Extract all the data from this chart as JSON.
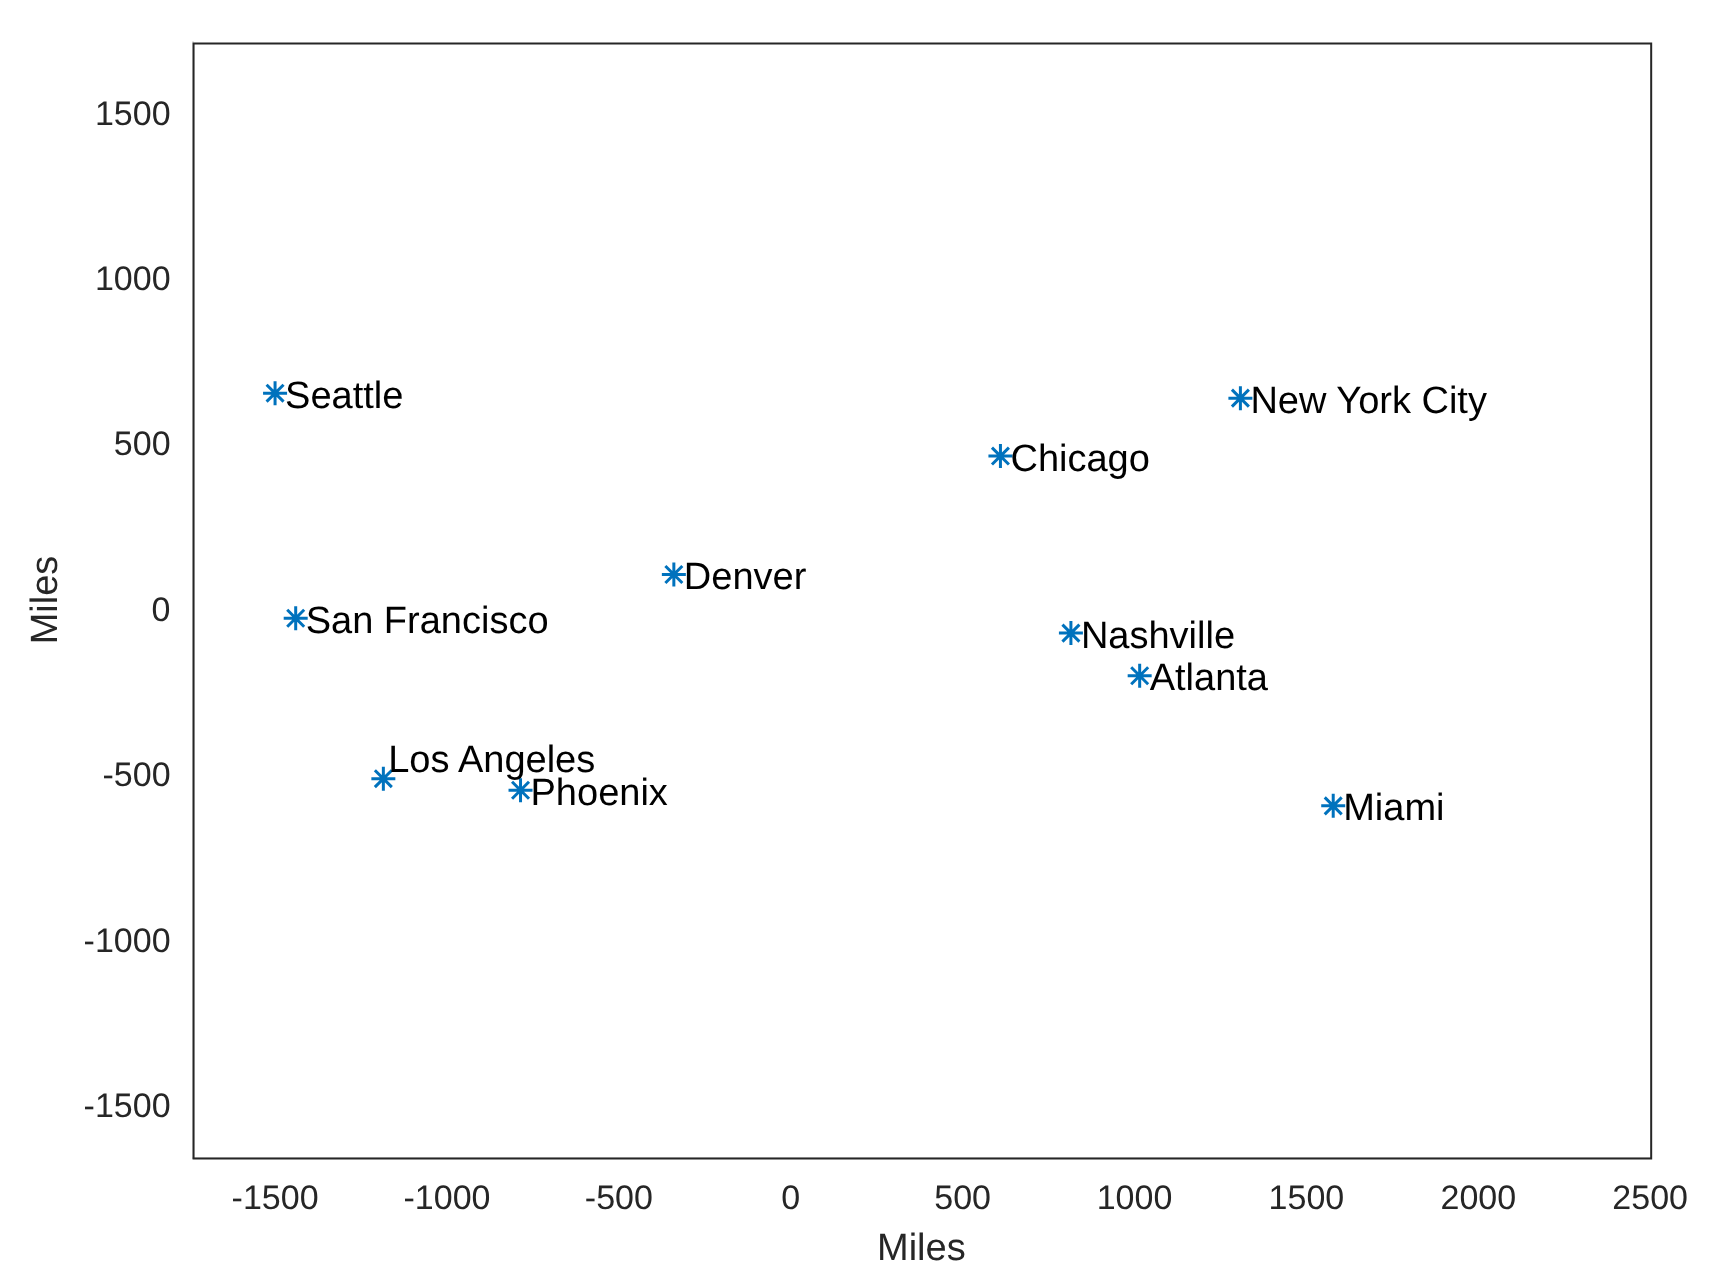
{
  "chart_data": {
    "type": "scatter",
    "xlabel": "Miles",
    "ylabel": "Miles",
    "xlim": [
      -1740,
      2500
    ],
    "xticks": [
      -1500,
      -1000,
      -500,
      0,
      500,
      1000,
      1500,
      2000,
      2500
    ],
    "ylim": [
      -1650,
      1720
    ],
    "yticks": [
      -1500,
      -1000,
      -500,
      0,
      500,
      1000,
      1500
    ],
    "grid": false,
    "legend": false,
    "marker": "cross",
    "series": [
      {
        "color": "#0072bd",
        "x": [
          -1500,
          -1440,
          -1185,
          -786,
          -340,
          610,
          1308,
          815,
          1015,
          1578
        ],
        "values": [
          660,
          -20,
          -505,
          -540,
          112,
          470,
          645,
          -65,
          -194,
          -587
        ]
      }
    ],
    "annotations": [
      {
        "text": "Seattle",
        "x": -1500,
        "y": 660
      },
      {
        "text": "San Francisco",
        "x": -1440,
        "y": -20
      },
      {
        "text": "Los Angeles",
        "x": -1200,
        "y": -440
      },
      {
        "text": "Phoenix",
        "x": -786,
        "y": -540
      },
      {
        "text": "Denver",
        "x": -340,
        "y": 112
      },
      {
        "text": "Chicago",
        "x": 610,
        "y": 470
      },
      {
        "text": "New York City",
        "x": 1308,
        "y": 645
      },
      {
        "text": "Nashville",
        "x": 815,
        "y": -65
      },
      {
        "text": "Atlanta",
        "x": 1015,
        "y": -194
      },
      {
        "text": "Miami",
        "x": 1578,
        "y": -587
      }
    ]
  }
}
